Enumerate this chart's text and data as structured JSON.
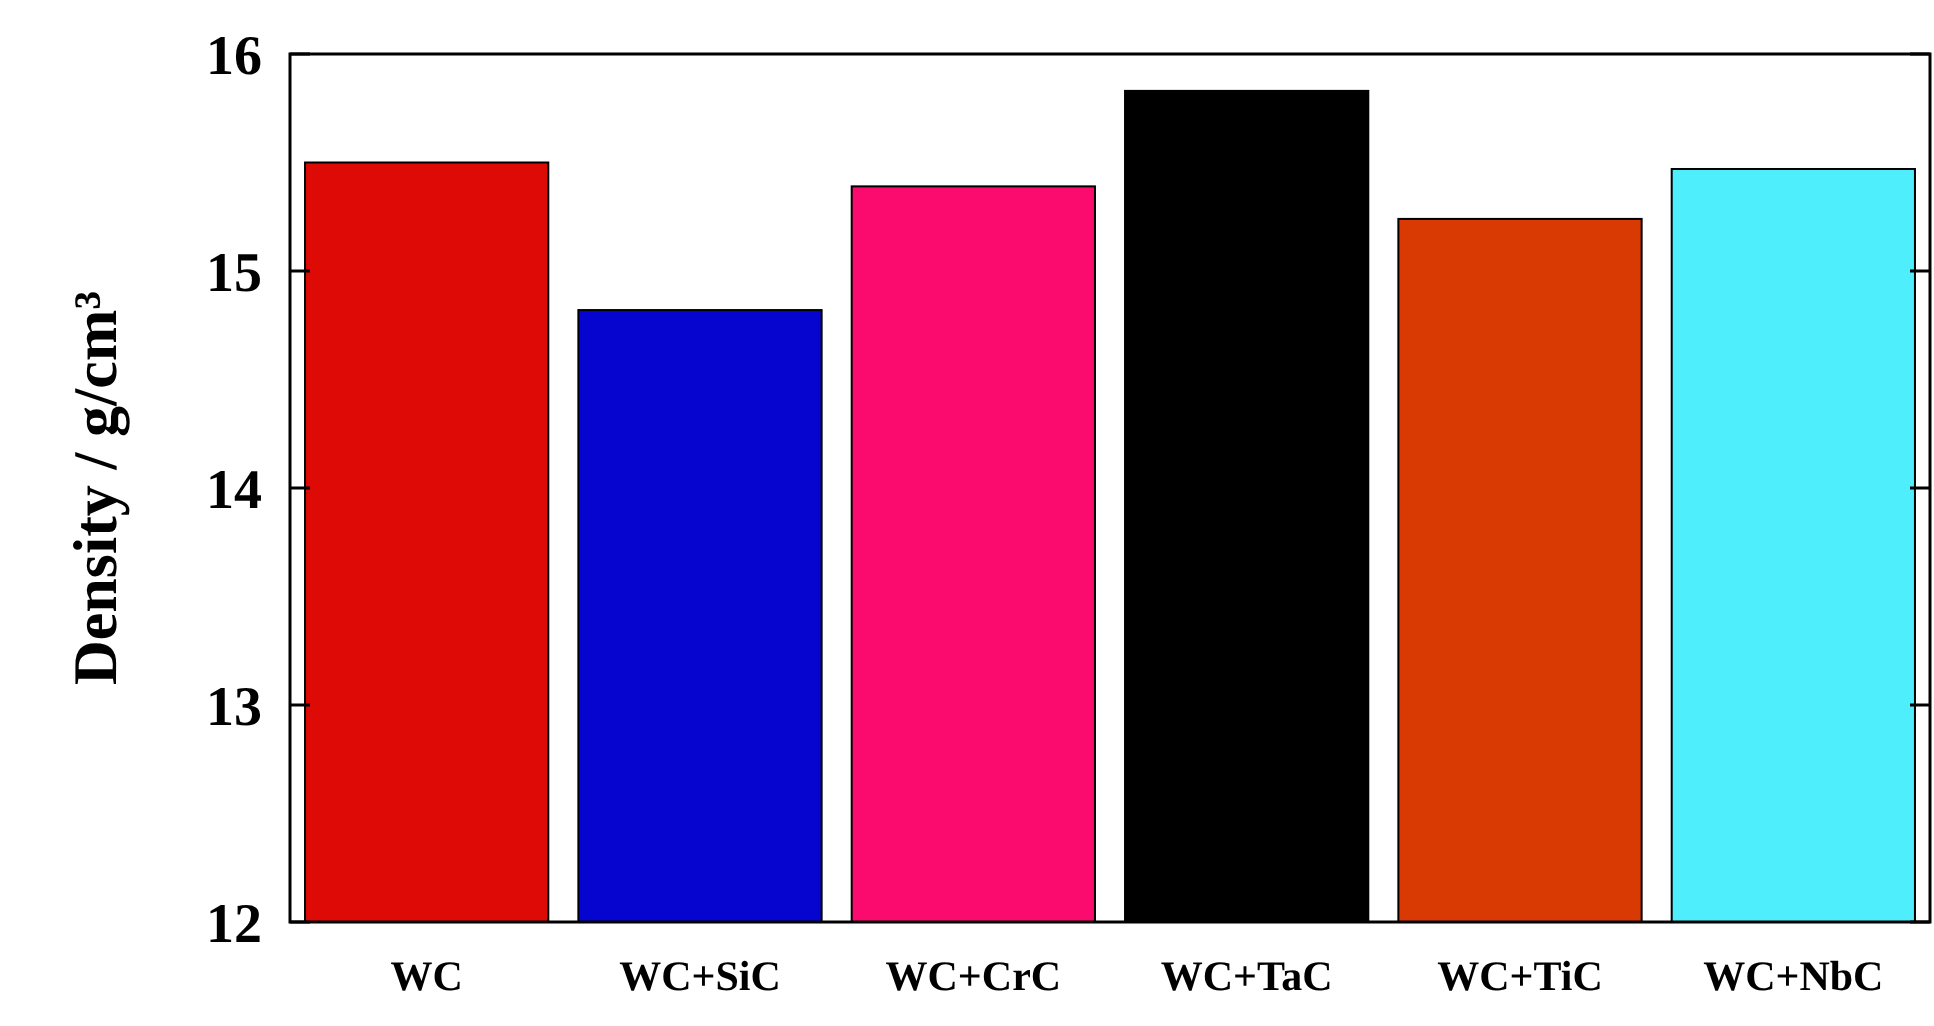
{
  "chart_data": {
    "type": "bar",
    "ylabel": "Density / g/cm³",
    "categories": [
      "WC",
      "WC+SiC",
      "WC+CrC",
      "WC+TaC",
      "WC+TiC",
      "WC+NbC"
    ],
    "values": [
      15.5,
      14.82,
      15.39,
      15.83,
      15.24,
      15.47
    ],
    "colors": [
      "#dd0a05",
      "#0505cf",
      "#fc0b6e",
      "#000000",
      "#d93a04",
      "#4eeefc"
    ],
    "ylim": [
      12,
      16
    ],
    "yticks": [
      12,
      13,
      14,
      15,
      16
    ],
    "grid": false
  }
}
